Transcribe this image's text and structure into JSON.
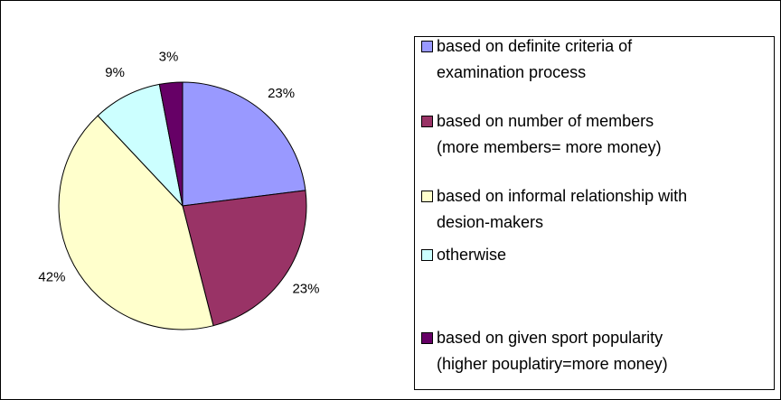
{
  "chart_data": {
    "type": "pie",
    "categories": [
      "based on definite criteria of\nexamination process",
      "based on number of members\n(more members= more money)",
      "based on informal relationship with\ndesion-makers",
      "otherwise",
      "based on given sport popularity\n(higher pouplatiry=more money)"
    ],
    "values": [
      23,
      23,
      42,
      9,
      3
    ],
    "value_labels": [
      "23%",
      "23%",
      "42%",
      "9%",
      "3%"
    ],
    "colors": [
      "#9999ff",
      "#993366",
      "#ffffcc",
      "#ccffff",
      "#660066"
    ],
    "legend": "right"
  }
}
